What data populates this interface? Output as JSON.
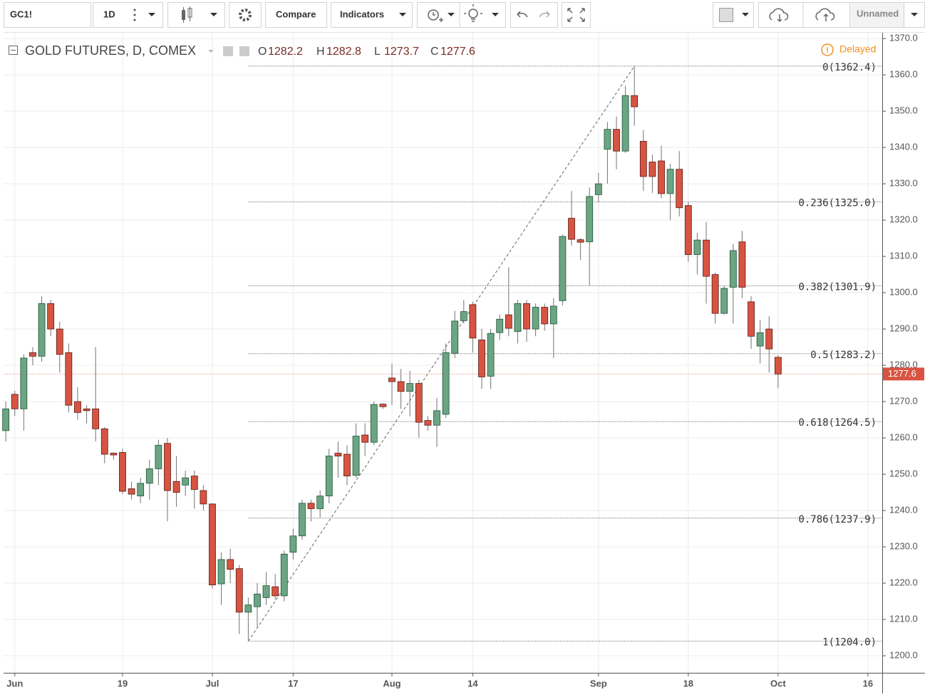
{
  "toolbar": {
    "symbol": "GC1!",
    "interval": "1D",
    "compare": "Compare",
    "indicators": "Indicators",
    "layout": "Unnamed"
  },
  "chart_data": {
    "type": "candlestick",
    "title": "GOLD FUTURES, D, COMEX",
    "status": "Delayed",
    "ohlc_letters": [
      "O",
      "H",
      "L",
      "C"
    ],
    "up_color": "#6ba583",
    "up_border": "#225437",
    "down_color": "#d75442",
    "down_border": "#5b1a13",
    "open": [
      1262,
      1272,
      1268,
      1283.5,
      1282.5,
      1297,
      1290,
      1283.5,
      1270,
      1268,
      1268,
      1262.5,
      1255.8,
      1256,
      1246,
      1244,
      1247.5,
      1251.5,
      1258.5,
      1248,
      1247,
      1249.5,
      1245.5,
      1241.8,
      1219.8,
      1226.5,
      1224,
      1212,
      1213.5,
      1216,
      1219,
      1216.5,
      1228.5,
      1233,
      1242,
      1240.5,
      1244,
      1255.8,
      1255.5,
      1249.7,
      1260.8,
      1258.8,
      1269.3,
      1276.5,
      1275.5,
      1272.8,
      1275,
      1264.8,
      1263.5,
      1266.5,
      1283.3,
      1292.3,
      1296.7,
      1287,
      1277,
      1289,
      1293.9,
      1289.3,
      1297,
      1290,
      1296,
      1291.4,
      1297.8,
      1320.5,
      1314.6,
      1314,
      1327,
      1339.5,
      1345,
      1339,
      1354.3,
      1341.7,
      1336,
      1336.3,
      1327.3,
      1334,
      1324,
      1310.5,
      1314.5,
      1305,
      1294.3,
      1301.5,
      1314,
      1297.5,
      1285.3,
      1290,
      1282.2
    ],
    "high": [
      1270,
      1273,
      1283,
      1285,
      1299,
      1298,
      1292,
      1286,
      1274,
      1269,
      1285,
      1263,
      1256,
      1257,
      1248,
      1249,
      1254,
      1259.5,
      1260,
      1255,
      1251,
      1251,
      1247,
      1242,
      1228.5,
      1229.5,
      1225,
      1216,
      1220,
      1223,
      1222.5,
      1229,
      1235,
      1243,
      1243,
      1245.5,
      1257,
      1259,
      1258,
      1264,
      1264,
      1270,
      1269.5,
      1280.5,
      1279,
      1278.5,
      1276,
      1266,
      1271,
      1286,
      1295,
      1298,
      1297.5,
      1290,
      1290,
      1294,
      1307,
      1298,
      1298,
      1297,
      1297,
      1298.5,
      1316,
      1328,
      1315,
      1329,
      1333,
      1347,
      1348.5,
      1357,
      1362.4,
      1344.8,
      1338,
      1340.5,
      1335.5,
      1339,
      1325,
      1316.5,
      1319.5,
      1305.5,
      1302,
      1313.5,
      1317,
      1299,
      1292.5,
      1293.5,
      1282.8
    ],
    "low": [
      1259,
      1266,
      1262,
      1280,
      1281,
      1288,
      1278,
      1267,
      1265,
      1264,
      1259,
      1253,
      1254,
      1244.5,
      1243,
      1242,
      1243,
      1247,
      1237,
      1241,
      1244,
      1240.5,
      1240,
      1218.5,
      1214,
      1220,
      1206,
      1204,
      1208,
      1214,
      1215.5,
      1215,
      1226.5,
      1232,
      1237,
      1238,
      1242,
      1249,
      1247,
      1249,
      1255,
      1258,
      1268,
      1269,
      1268,
      1266,
      1260,
      1262,
      1257.5,
      1265.5,
      1282,
      1291.5,
      1283.5,
      1273.5,
      1273.5,
      1287,
      1288,
      1286,
      1286.5,
      1288,
      1289.5,
      1282,
      1296.5,
      1313,
      1309,
      1302,
      1325,
      1330,
      1334,
      1338.5,
      1346,
      1328,
      1327.5,
      1326,
      1320,
      1321,
      1308.5,
      1305,
      1297,
      1291.5,
      1294,
      1291.5,
      1298.5,
      1284.5,
      1280.5,
      1278,
      1273.7
    ],
    "close": [
      1268,
      1268,
      1282,
      1282.5,
      1297,
      1290,
      1283,
      1269,
      1267,
      1267.5,
      1262.5,
      1255.5,
      1255.3,
      1245.3,
      1244.5,
      1247.5,
      1251.5,
      1258,
      1245.5,
      1245,
      1249,
      1245.8,
      1241.8,
      1219.5,
      1226.5,
      1223.8,
      1212,
      1214,
      1217,
      1219.3,
      1216.5,
      1228,
      1233,
      1242,
      1240.5,
      1244,
      1255,
      1255,
      1249.5,
      1260.5,
      1258.8,
      1269.2,
      1268.6,
      1275.5,
      1272.8,
      1275,
      1264.3,
      1263.5,
      1267.5,
      1283.5,
      1292.2,
      1294.8,
      1287.5,
      1276.8,
      1288.8,
      1292.7,
      1290.2,
      1297,
      1290,
      1296,
      1291.4,
      1296.3,
      1315.5,
      1314.7,
      1313.9,
      1326.5,
      1330,
      1345,
      1339,
      1354.3,
      1351.2,
      1332,
      1332,
      1327.3,
      1334,
      1323.4,
      1310.5,
      1314.5,
      1304.5,
      1294.3,
      1301.2,
      1311.6,
      1301.5,
      1288,
      1289,
      1284.5,
      1277.6
    ],
    "last_price": {
      "value": 1277.6,
      "label": "1277.6"
    },
    "fib_levels": [
      {
        "value": 1362.4,
        "label": "0(1362.4)"
      },
      {
        "value": 1325.0,
        "label": "0.236(1325.0)"
      },
      {
        "value": 1301.9,
        "label": "0.382(1301.9)"
      },
      {
        "value": 1283.2,
        "label": "0.5(1283.2)"
      },
      {
        "value": 1264.5,
        "label": "0.618(1264.5)"
      },
      {
        "value": 1237.9,
        "label": "0.786(1237.9)"
      },
      {
        "value": 1204.0,
        "label": "1(1204.0)"
      }
    ],
    "xlim": [
      -0.25,
      97.6
    ],
    "xticks": [
      {
        "value": 1,
        "label": "Jun"
      },
      {
        "value": 13,
        "label": "19"
      },
      {
        "value": 23,
        "label": "Jul"
      },
      {
        "value": 32,
        "label": "17"
      },
      {
        "value": 43,
        "label": "Aug"
      },
      {
        "value": 52,
        "label": "14"
      },
      {
        "value": 66,
        "label": "Sep"
      },
      {
        "value": 76,
        "label": "18"
      },
      {
        "value": 86,
        "label": "Oct"
      },
      {
        "value": 96,
        "label": "16"
      }
    ],
    "ylim": [
      1195.3,
      1371.6
    ],
    "yticks": [
      {
        "value": 1200,
        "label": "1200.0"
      },
      {
        "value": 1210,
        "label": "1210.0"
      },
      {
        "value": 1220,
        "label": "1220.0"
      },
      {
        "value": 1230,
        "label": "1230.0"
      },
      {
        "value": 1240,
        "label": "1240.0"
      },
      {
        "value": 1250,
        "label": "1250.0"
      },
      {
        "value": 1260,
        "label": "1260.0"
      },
      {
        "value": 1270,
        "label": "1270.0"
      },
      {
        "value": 1280,
        "label": "1280.0"
      },
      {
        "value": 1290,
        "label": "1290.0"
      },
      {
        "value": 1300,
        "label": "1300.0"
      },
      {
        "value": 1310,
        "label": "1310.0"
      },
      {
        "value": 1320,
        "label": "1320.0"
      },
      {
        "value": 1330,
        "label": "1330.0"
      },
      {
        "value": 1340,
        "label": "1340.0"
      },
      {
        "value": 1350,
        "label": "1350.0"
      },
      {
        "value": 1360,
        "label": "1360.0"
      },
      {
        "value": 1370,
        "label": "1370.0"
      }
    ],
    "grid": true
  }
}
